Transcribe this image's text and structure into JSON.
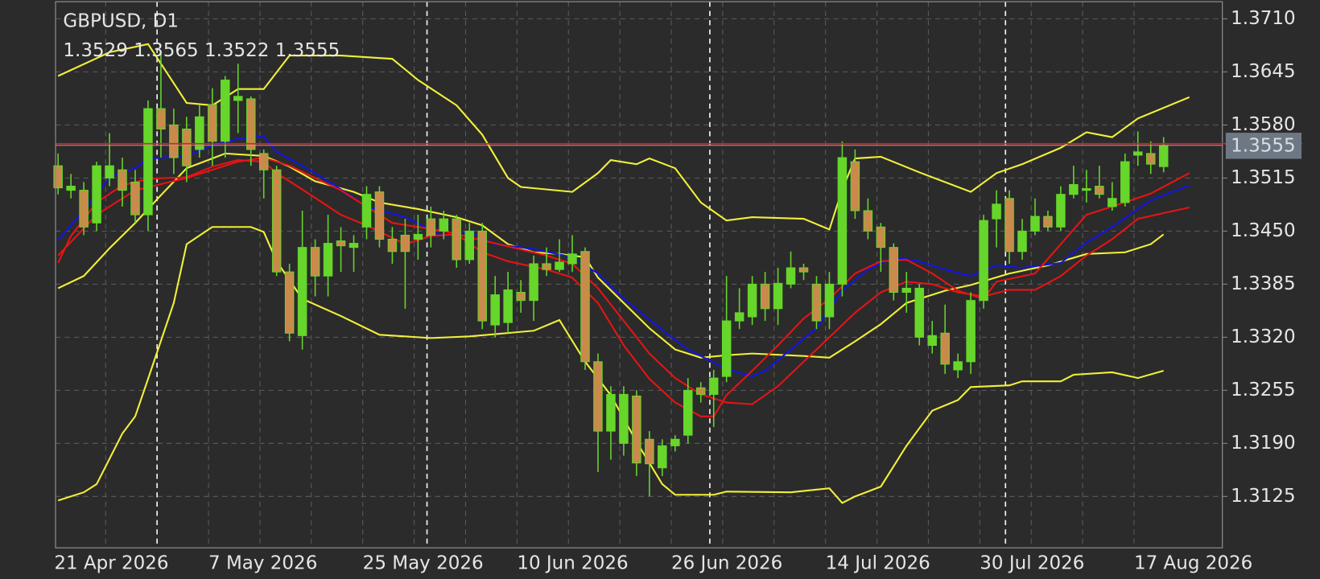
{
  "chart_data": {
    "type": "candlestick",
    "title": "GBPUSD, D1",
    "categories": [
      "21 Apr 2026",
      null,
      null,
      null,
      null,
      null,
      null,
      null,
      null,
      null,
      null,
      null,
      "7 May 2026",
      null,
      null,
      null,
      null,
      null,
      null,
      null,
      null,
      null,
      null,
      null,
      "25 May 2026",
      null,
      null,
      null,
      null,
      null,
      null,
      null,
      null,
      null,
      null,
      null,
      "10 Jun 2026",
      null,
      null,
      null,
      null,
      null,
      null,
      null,
      null,
      null,
      null,
      null,
      "26 Jun 2026",
      null,
      null,
      null,
      null,
      null,
      null,
      null,
      null,
      null,
      null,
      null,
      "14 Jul 2026",
      null,
      null,
      null,
      null,
      null,
      null,
      null,
      null,
      null,
      null,
      null,
      "30 Jul 2026",
      null,
      null,
      null,
      null,
      null,
      null,
      null,
      null,
      null,
      null,
      null,
      "17 Aug 2026",
      null,
      null
    ],
    "open": [
      1.353,
      1.35,
      1.35,
      1.346,
      1.3515,
      1.3525,
      1.351,
      1.347,
      1.36,
      1.358,
      1.3575,
      1.355,
      1.3605,
      1.356,
      1.361,
      1.3612,
      1.3545,
      1.3525,
      1.34,
      1.3322,
      1.343,
      1.3395,
      1.3438,
      1.343,
      1.3455,
      1.3498,
      1.344,
      1.3445,
      1.344,
      1.3465,
      1.345,
      1.3465,
      1.3415,
      1.345,
      1.3335,
      1.3338,
      1.3375,
      1.3365,
      1.341,
      1.3403,
      1.341,
      1.3425,
      1.329,
      1.3205,
      1.319,
      1.3248,
      1.3195,
      1.316,
      1.3187,
      1.32,
      1.3258,
      1.325,
      1.3272,
      1.334,
      1.3345,
      1.3385,
      1.3355,
      1.3385,
      1.3405,
      1.3385,
      1.3345,
      1.3385,
      1.3535,
      1.3475,
      1.3455,
      1.343,
      1.3375,
      1.332,
      1.331,
      1.3325,
      1.328,
      1.329,
      1.3365,
      1.3465,
      1.349,
      1.3425,
      1.345,
      1.3468,
      1.3455,
      1.3495,
      1.35,
      1.3505,
      1.348,
      1.3485,
      1.3543,
      1.3545,
      1.3529
    ],
    "high": [
      1.3545,
      1.352,
      1.351,
      1.3535,
      1.357,
      1.354,
      1.3525,
      1.361,
      1.367,
      1.36,
      1.359,
      1.3605,
      1.3625,
      1.364,
      1.3655,
      1.3615,
      1.355,
      1.353,
      1.341,
      1.3475,
      1.344,
      1.347,
      1.3455,
      1.3445,
      1.3505,
      1.3505,
      1.3455,
      1.3465,
      1.347,
      1.348,
      1.3475,
      1.347,
      1.346,
      1.346,
      1.3395,
      1.34,
      1.339,
      1.342,
      1.343,
      1.344,
      1.3445,
      1.343,
      1.33,
      1.326,
      1.326,
      1.3255,
      1.3205,
      1.3195,
      1.32,
      1.327,
      1.3265,
      1.328,
      1.3395,
      1.338,
      1.3395,
      1.34,
      1.3405,
      1.3425,
      1.341,
      1.3395,
      1.34,
      1.356,
      1.355,
      1.349,
      1.346,
      1.3435,
      1.34,
      1.3385,
      1.334,
      1.336,
      1.33,
      1.3375,
      1.347,
      1.35,
      1.35,
      1.3465,
      1.349,
      1.3475,
      1.3505,
      1.353,
      1.3525,
      1.353,
      1.351,
      1.3545,
      1.3572,
      1.356,
      1.3565
    ],
    "low": [
      1.3495,
      1.349,
      1.3445,
      1.345,
      1.3505,
      1.348,
      1.346,
      1.345,
      1.354,
      1.352,
      1.351,
      1.354,
      1.353,
      1.354,
      1.357,
      1.353,
      1.349,
      1.3395,
      1.3315,
      1.3305,
      1.337,
      1.337,
      1.34,
      1.34,
      1.344,
      1.343,
      1.341,
      1.3355,
      1.3415,
      1.343,
      1.344,
      1.3405,
      1.341,
      1.333,
      1.332,
      1.3325,
      1.335,
      1.334,
      1.3395,
      1.34,
      1.34,
      1.328,
      1.3155,
      1.317,
      1.3175,
      1.315,
      1.3125,
      1.315,
      1.318,
      1.319,
      1.324,
      1.321,
      1.3265,
      1.333,
      1.3335,
      1.334,
      1.3335,
      1.338,
      1.339,
      1.333,
      1.333,
      1.337,
      1.3465,
      1.344,
      1.34,
      1.3365,
      1.335,
      1.331,
      1.33,
      1.3275,
      1.327,
      1.3275,
      1.3355,
      1.343,
      1.341,
      1.3415,
      1.3445,
      1.345,
      1.345,
      1.349,
      1.3485,
      1.349,
      1.3475,
      1.348,
      1.353,
      1.352,
      1.3522
    ],
    "close": [
      1.3503,
      1.3505,
      1.3455,
      1.353,
      1.353,
      1.35,
      1.347,
      1.36,
      1.3575,
      1.354,
      1.353,
      1.359,
      1.356,
      1.3635,
      1.3615,
      1.355,
      1.3525,
      1.34,
      1.3325,
      1.343,
      1.3395,
      1.3435,
      1.3432,
      1.3435,
      1.3495,
      1.344,
      1.3425,
      1.3425,
      1.3446,
      1.3445,
      1.3465,
      1.3415,
      1.345,
      1.334,
      1.3372,
      1.3378,
      1.3365,
      1.341,
      1.3403,
      1.3412,
      1.3422,
      1.329,
      1.3205,
      1.325,
      1.325,
      1.3166,
      1.3165,
      1.3187,
      1.3195,
      1.3255,
      1.325,
      1.327,
      1.334,
      1.335,
      1.3385,
      1.3355,
      1.3386,
      1.3405,
      1.34,
      1.334,
      1.3385,
      1.354,
      1.3475,
      1.345,
      1.343,
      1.3375,
      1.338,
      1.338,
      1.3322,
      1.3287,
      1.329,
      1.3365,
      1.3463,
      1.3483,
      1.3425,
      1.345,
      1.3468,
      1.3455,
      1.3495,
      1.3507,
      1.3502,
      1.3495,
      1.349,
      1.3535,
      1.3547,
      1.3532,
      1.3555
    ],
    "up_color": "#66d62a",
    "down_color": "#c98a4b",
    "lines": [
      {
        "color": "#f0f03a",
        "x": [
          0,
          4,
          7,
          8,
          10,
          12,
          14,
          16,
          18,
          22,
          26,
          28,
          31,
          33,
          35,
          36,
          40,
          42,
          43,
          45,
          46,
          48,
          50,
          52,
          54,
          58,
          60,
          61,
          62,
          64,
          67,
          71,
          73,
          75,
          78,
          80,
          82,
          84,
          88
        ],
        "values": [
          1.364,
          1.3669,
          1.3679,
          1.3655,
          1.3607,
          1.3604,
          1.3624,
          1.3624,
          1.3665,
          1.3665,
          1.3661,
          1.3635,
          1.3604,
          1.3568,
          1.3515,
          1.3504,
          1.3498,
          1.3521,
          1.3537,
          1.3532,
          1.3539,
          1.3527,
          1.3485,
          1.3463,
          1.3467,
          1.3465,
          1.3452,
          1.3501,
          1.3539,
          1.3541,
          1.3522,
          1.3498,
          1.3521,
          1.3532,
          1.3552,
          1.3571,
          1.3565,
          1.3588,
          1.3614
        ]
      },
      {
        "color": "#f0f03a",
        "x": [
          0,
          2,
          4,
          6,
          8,
          10,
          13,
          16,
          18,
          20,
          23,
          25,
          28,
          31,
          33,
          35,
          37,
          39,
          41,
          42,
          44,
          46,
          48,
          50,
          52,
          54,
          58,
          60,
          62,
          64,
          66,
          69,
          71,
          74,
          77,
          80,
          83,
          85,
          86
        ],
        "values": [
          1.338,
          1.3395,
          1.3429,
          1.346,
          1.3494,
          1.3527,
          1.3545,
          1.3542,
          1.3529,
          1.3511,
          1.3498,
          1.3485,
          1.3477,
          1.3467,
          1.3457,
          1.3434,
          1.3424,
          1.3422,
          1.3418,
          1.3393,
          1.3362,
          1.3331,
          1.3305,
          1.3295,
          1.3298,
          1.33,
          1.3297,
          1.3295,
          1.3315,
          1.3336,
          1.3362,
          1.3377,
          1.3384,
          1.3398,
          1.3408,
          1.3422,
          1.3424,
          1.3434,
          1.3446
        ]
      },
      {
        "color": "#f0f03a",
        "x": [
          0,
          2,
          3,
          5,
          6,
          7,
          9,
          10,
          12,
          15,
          16,
          17,
          19,
          22,
          25,
          29,
          32,
          37,
          39,
          41,
          43,
          45,
          47,
          48,
          51,
          52,
          57,
          60,
          61,
          62,
          64,
          66,
          68,
          70,
          71,
          74,
          75,
          78,
          79,
          82,
          84,
          86
        ],
        "values": [
          1.312,
          1.313,
          1.314,
          1.3202,
          1.3223,
          1.3269,
          1.3362,
          1.3434,
          1.3455,
          1.3455,
          1.3449,
          1.3413,
          1.3367,
          1.3346,
          1.3323,
          1.3319,
          1.3321,
          1.3328,
          1.3341,
          1.329,
          1.3249,
          1.3192,
          1.314,
          1.3127,
          1.3127,
          1.3131,
          1.313,
          1.3135,
          1.3117,
          1.3125,
          1.3137,
          1.3187,
          1.323,
          1.3243,
          1.3259,
          1.3261,
          1.3266,
          1.3266,
          1.3274,
          1.3277,
          1.327,
          1.3279
        ]
      },
      {
        "color": "#1414e6",
        "x": [
          0,
          2,
          4,
          6,
          7,
          10,
          12,
          14,
          16,
          17,
          20,
          22,
          24,
          27,
          30,
          32,
          34,
          37,
          40,
          42,
          44,
          47,
          49,
          52,
          54,
          55,
          57,
          59,
          61,
          63,
          65,
          67,
          69,
          71,
          73,
          75,
          78,
          80,
          82,
          85,
          88
        ],
        "values": [
          1.3439,
          1.3475,
          1.3516,
          1.3527,
          1.3539,
          1.3542,
          1.3555,
          1.3563,
          1.3566,
          1.3547,
          1.3521,
          1.3501,
          1.348,
          1.3467,
          1.3444,
          1.3449,
          1.3434,
          1.3428,
          1.3418,
          1.3398,
          1.3367,
          1.3329,
          1.3305,
          1.3281,
          1.3272,
          1.3279,
          1.3305,
          1.3331,
          1.3377,
          1.3403,
          1.3418,
          1.3413,
          1.3403,
          1.3395,
          1.3408,
          1.3405,
          1.3411,
          1.3436,
          1.3455,
          1.3488,
          1.3506
        ]
      },
      {
        "color": "#e61414",
        "x": [
          0,
          1,
          3,
          5,
          7,
          10,
          12,
          14,
          16,
          17,
          19,
          22,
          24,
          27,
          29,
          31,
          33,
          35,
          38,
          40,
          42,
          44,
          46,
          48,
          50,
          51,
          52,
          54,
          56,
          58,
          60,
          62,
          64,
          66,
          68,
          70,
          72,
          73,
          76,
          78,
          80,
          82,
          85,
          88
        ],
        "values": [
          1.3411,
          1.3444,
          1.3485,
          1.3506,
          1.3514,
          1.3516,
          1.3529,
          1.3537,
          1.3535,
          1.3521,
          1.3501,
          1.347,
          1.3457,
          1.3434,
          1.3444,
          1.3446,
          1.3424,
          1.3413,
          1.3403,
          1.3393,
          1.3362,
          1.331,
          1.3269,
          1.324,
          1.3223,
          1.3223,
          1.3249,
          1.3279,
          1.331,
          1.3343,
          1.3367,
          1.3398,
          1.3413,
          1.3415,
          1.3398,
          1.3377,
          1.3367,
          1.3388,
          1.3398,
          1.3434,
          1.347,
          1.348,
          1.3496,
          1.3521
        ]
      },
      {
        "color": "#e61414",
        "x": [
          0,
          3,
          6,
          10,
          14,
          16,
          18,
          22,
          26,
          30,
          34,
          38,
          40,
          42,
          44,
          46,
          48,
          50,
          52,
          54,
          56,
          58,
          60,
          62,
          64,
          66,
          68,
          70,
          72,
          74,
          76,
          78,
          80,
          82,
          84,
          88
        ],
        "values": [
          1.342,
          1.347,
          1.35,
          1.3515,
          1.3535,
          1.354,
          1.353,
          1.35,
          1.346,
          1.345,
          1.3435,
          1.342,
          1.341,
          1.338,
          1.334,
          1.33,
          1.327,
          1.325,
          1.324,
          1.3238,
          1.326,
          1.329,
          1.332,
          1.335,
          1.3375,
          1.3388,
          1.3385,
          1.3375,
          1.337,
          1.3378,
          1.3378,
          1.3395,
          1.342,
          1.344,
          1.3465,
          1.3479
        ]
      }
    ],
    "ylim": [
      1.3062,
      1.3731
    ],
    "yticks": [
      {
        "value": 1.371,
        "label": "1.3710"
      },
      1.3645,
      {
        "value": 1.358,
        "label": "1.3580"
      },
      1.3515,
      {
        "value": 1.345,
        "label": "1.3450"
      },
      1.3385,
      {
        "value": 1.332,
        "label": "1.3320"
      },
      1.3255,
      {
        "value": 1.319,
        "label": "1.3190"
      },
      1.3125
    ],
    "grid": true
  }
}
